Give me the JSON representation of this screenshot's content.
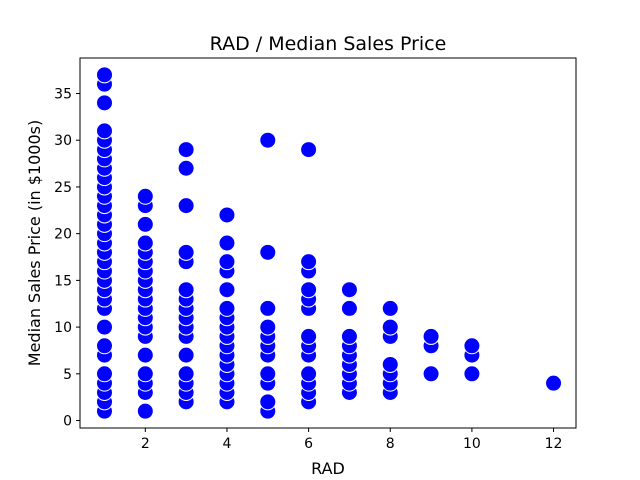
{
  "chart_data": {
    "type": "scatter",
    "title": "RAD / Median Sales Price",
    "xlabel": "RAD",
    "ylabel": "Median Sales Price (in $1000s)",
    "xlim": [
      0.4,
      12.55
    ],
    "ylim": [
      -0.8,
      38.8
    ],
    "xticks": [
      2,
      4,
      6,
      8,
      10,
      12
    ],
    "yticks": [
      0,
      5,
      10,
      15,
      20,
      25,
      30,
      35
    ],
    "grid": false,
    "marker_color": "#0000ff",
    "marker_edge_color": "#ffffff",
    "points": [
      {
        "x": 1,
        "y": 1
      },
      {
        "x": 1,
        "y": 2
      },
      {
        "x": 1,
        "y": 3
      },
      {
        "x": 1,
        "y": 4
      },
      {
        "x": 1,
        "y": 5
      },
      {
        "x": 1,
        "y": 7
      },
      {
        "x": 1,
        "y": 8
      },
      {
        "x": 1,
        "y": 10
      },
      {
        "x": 1,
        "y": 12
      },
      {
        "x": 1,
        "y": 13
      },
      {
        "x": 1,
        "y": 14
      },
      {
        "x": 1,
        "y": 15
      },
      {
        "x": 1,
        "y": 16
      },
      {
        "x": 1,
        "y": 17
      },
      {
        "x": 1,
        "y": 18
      },
      {
        "x": 1,
        "y": 19
      },
      {
        "x": 1,
        "y": 20
      },
      {
        "x": 1,
        "y": 21
      },
      {
        "x": 1,
        "y": 22
      },
      {
        "x": 1,
        "y": 23
      },
      {
        "x": 1,
        "y": 24
      },
      {
        "x": 1,
        "y": 25
      },
      {
        "x": 1,
        "y": 26
      },
      {
        "x": 1,
        "y": 27
      },
      {
        "x": 1,
        "y": 28
      },
      {
        "x": 1,
        "y": 29
      },
      {
        "x": 1,
        "y": 30
      },
      {
        "x": 1,
        "y": 31
      },
      {
        "x": 1,
        "y": 34
      },
      {
        "x": 1,
        "y": 36
      },
      {
        "x": 1,
        "y": 37
      },
      {
        "x": 2,
        "y": 1
      },
      {
        "x": 2,
        "y": 3
      },
      {
        "x": 2,
        "y": 4
      },
      {
        "x": 2,
        "y": 5
      },
      {
        "x": 2,
        "y": 7
      },
      {
        "x": 2,
        "y": 9
      },
      {
        "x": 2,
        "y": 10
      },
      {
        "x": 2,
        "y": 11
      },
      {
        "x": 2,
        "y": 12
      },
      {
        "x": 2,
        "y": 13
      },
      {
        "x": 2,
        "y": 14
      },
      {
        "x": 2,
        "y": 15
      },
      {
        "x": 2,
        "y": 16
      },
      {
        "x": 2,
        "y": 17
      },
      {
        "x": 2,
        "y": 18
      },
      {
        "x": 2,
        "y": 19
      },
      {
        "x": 2,
        "y": 21
      },
      {
        "x": 2,
        "y": 23
      },
      {
        "x": 2,
        "y": 24
      },
      {
        "x": 3,
        "y": 2
      },
      {
        "x": 3,
        "y": 3
      },
      {
        "x": 3,
        "y": 4
      },
      {
        "x": 3,
        "y": 5
      },
      {
        "x": 3,
        "y": 7
      },
      {
        "x": 3,
        "y": 9
      },
      {
        "x": 3,
        "y": 10
      },
      {
        "x": 3,
        "y": 11
      },
      {
        "x": 3,
        "y": 12
      },
      {
        "x": 3,
        "y": 13
      },
      {
        "x": 3,
        "y": 14
      },
      {
        "x": 3,
        "y": 17
      },
      {
        "x": 3,
        "y": 18
      },
      {
        "x": 3,
        "y": 23
      },
      {
        "x": 3,
        "y": 27
      },
      {
        "x": 3,
        "y": 29
      },
      {
        "x": 4,
        "y": 2
      },
      {
        "x": 4,
        "y": 3
      },
      {
        "x": 4,
        "y": 4
      },
      {
        "x": 4,
        "y": 5
      },
      {
        "x": 4,
        "y": 6
      },
      {
        "x": 4,
        "y": 7
      },
      {
        "x": 4,
        "y": 8
      },
      {
        "x": 4,
        "y": 9
      },
      {
        "x": 4,
        "y": 10
      },
      {
        "x": 4,
        "y": 11
      },
      {
        "x": 4,
        "y": 12
      },
      {
        "x": 4,
        "y": 14
      },
      {
        "x": 4,
        "y": 16
      },
      {
        "x": 4,
        "y": 17
      },
      {
        "x": 4,
        "y": 19
      },
      {
        "x": 4,
        "y": 22
      },
      {
        "x": 5,
        "y": 1
      },
      {
        "x": 5,
        "y": 2
      },
      {
        "x": 5,
        "y": 4
      },
      {
        "x": 5,
        "y": 5
      },
      {
        "x": 5,
        "y": 7
      },
      {
        "x": 5,
        "y": 8
      },
      {
        "x": 5,
        "y": 9
      },
      {
        "x": 5,
        "y": 10
      },
      {
        "x": 5,
        "y": 12
      },
      {
        "x": 5,
        "y": 18
      },
      {
        "x": 5,
        "y": 30
      },
      {
        "x": 6,
        "y": 2
      },
      {
        "x": 6,
        "y": 3
      },
      {
        "x": 6,
        "y": 4
      },
      {
        "x": 6,
        "y": 5
      },
      {
        "x": 6,
        "y": 7
      },
      {
        "x": 6,
        "y": 8
      },
      {
        "x": 6,
        "y": 9
      },
      {
        "x": 6,
        "y": 12
      },
      {
        "x": 6,
        "y": 13
      },
      {
        "x": 6,
        "y": 14
      },
      {
        "x": 6,
        "y": 16
      },
      {
        "x": 6,
        "y": 17
      },
      {
        "x": 6,
        "y": 29
      },
      {
        "x": 7,
        "y": 3
      },
      {
        "x": 7,
        "y": 4
      },
      {
        "x": 7,
        "y": 5
      },
      {
        "x": 7,
        "y": 6
      },
      {
        "x": 7,
        "y": 7
      },
      {
        "x": 7,
        "y": 8
      },
      {
        "x": 7,
        "y": 9
      },
      {
        "x": 7,
        "y": 12
      },
      {
        "x": 7,
        "y": 14
      },
      {
        "x": 8,
        "y": 3
      },
      {
        "x": 8,
        "y": 4
      },
      {
        "x": 8,
        "y": 5
      },
      {
        "x": 8,
        "y": 6
      },
      {
        "x": 8,
        "y": 9
      },
      {
        "x": 8,
        "y": 10
      },
      {
        "x": 8,
        "y": 12
      },
      {
        "x": 9,
        "y": 5
      },
      {
        "x": 9,
        "y": 8
      },
      {
        "x": 9,
        "y": 9
      },
      {
        "x": 10,
        "y": 5
      },
      {
        "x": 10,
        "y": 7
      },
      {
        "x": 10,
        "y": 8
      },
      {
        "x": 12,
        "y": 4
      }
    ]
  }
}
